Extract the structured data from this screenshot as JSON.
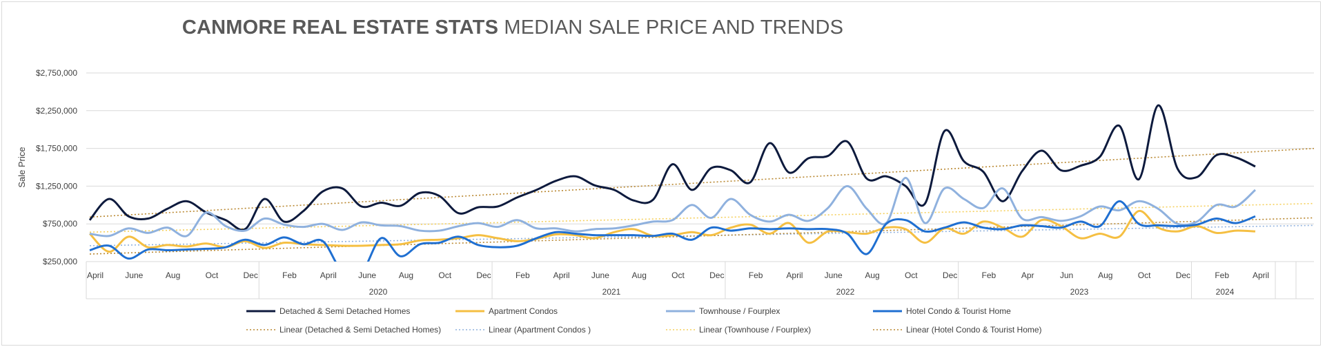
{
  "chart_data": {
    "type": "line",
    "title_bold": "CANMORE REAL ESTATE STATS",
    "title_rest": "MEDIAN SALE PRICE AND TRENDS",
    "ylabel": "Sale Price",
    "xlabel": "",
    "ylim": [
      250000,
      2750000
    ],
    "yticks": [
      "$250,000",
      "$750,000",
      "$1,250,000",
      "$1,750,000",
      "$2,250,000",
      "$2,750,000"
    ],
    "grid": true,
    "legend_position": "bottom",
    "x_tick_labels": [
      "April",
      "June",
      "Aug",
      "Oct",
      "Dec",
      "Feb",
      "April",
      "June",
      "Aug",
      "Oct",
      "Dec",
      "Feb",
      "April",
      "June",
      "Aug",
      "Oct",
      "Dec",
      "Feb",
      "April",
      "June",
      "Aug",
      "Oct",
      "Dec",
      "Feb",
      "Apr",
      "Jun",
      "Aug",
      "Oct",
      "Dec",
      "Feb",
      "April"
    ],
    "year_labels": [
      "2020",
      "2021",
      "2022",
      "2023",
      "2024"
    ],
    "months": [
      "2019-04",
      "2019-05",
      "2019-06",
      "2019-07",
      "2019-08",
      "2019-09",
      "2019-10",
      "2019-11",
      "2019-12",
      "2020-01",
      "2020-02",
      "2020-03",
      "2020-04",
      "2020-05",
      "2020-06",
      "2020-07",
      "2020-08",
      "2020-09",
      "2020-10",
      "2020-11",
      "2020-12",
      "2021-01",
      "2021-02",
      "2021-03",
      "2021-04",
      "2021-05",
      "2021-06",
      "2021-07",
      "2021-08",
      "2021-09",
      "2021-10",
      "2021-11",
      "2021-12",
      "2022-01",
      "2022-02",
      "2022-03",
      "2022-04",
      "2022-05",
      "2022-06",
      "2022-07",
      "2022-08",
      "2022-09",
      "2022-10",
      "2022-11",
      "2022-12",
      "2023-01",
      "2023-02",
      "2023-03",
      "2023-04",
      "2023-05",
      "2023-06",
      "2023-07",
      "2023-08",
      "2023-09",
      "2023-10",
      "2023-11",
      "2023-12",
      "2024-01",
      "2024-02",
      "2024-03",
      "2024-04"
    ],
    "series": [
      {
        "name": "Detached & Semi Detached Homes",
        "color": "#0d1a3d",
        "values": [
          800000,
          1080000,
          850000,
          820000,
          950000,
          1050000,
          900000,
          800000,
          680000,
          1080000,
          780000,
          920000,
          1180000,
          1220000,
          980000,
          1030000,
          990000,
          1160000,
          1120000,
          890000,
          970000,
          980000,
          1100000,
          1200000,
          1320000,
          1380000,
          1260000,
          1200000,
          1060000,
          1070000,
          1540000,
          1200000,
          1490000,
          1460000,
          1300000,
          1820000,
          1430000,
          1620000,
          1650000,
          1840000,
          1350000,
          1380000,
          1250000,
          1020000,
          1980000,
          1580000,
          1440000,
          1050000,
          1450000,
          1720000,
          1460000,
          1520000,
          1640000,
          2050000,
          1340000,
          2320000,
          1480000,
          1370000,
          1660000,
          1630000,
          1510000
        ]
      },
      {
        "name": "Apartment Condos",
        "color": "#f5bf42",
        "values": [
          620000,
          380000,
          580000,
          440000,
          470000,
          450000,
          490000,
          440000,
          520000,
          430000,
          500000,
          480000,
          470000,
          460000,
          460000,
          470000,
          480000,
          530000,
          540000,
          560000,
          600000,
          560000,
          520000,
          550000,
          610000,
          600000,
          560000,
          640000,
          680000,
          590000,
          600000,
          640000,
          600000,
          700000,
          740000,
          620000,
          760000,
          500000,
          650000,
          640000,
          620000,
          700000,
          680000,
          500000,
          690000,
          620000,
          780000,
          700000,
          580000,
          800000,
          720000,
          560000,
          620000,
          580000,
          920000,
          700000,
          650000,
          720000,
          630000,
          660000,
          650000
        ]
      },
      {
        "name": "Townhouse / Fourplex",
        "color": "#8fb1de",
        "values": [
          620000,
          590000,
          690000,
          630000,
          700000,
          590000,
          900000,
          720000,
          660000,
          820000,
          740000,
          710000,
          750000,
          670000,
          770000,
          730000,
          720000,
          660000,
          660000,
          720000,
          760000,
          710000,
          800000,
          690000,
          690000,
          650000,
          680000,
          690000,
          730000,
          780000,
          800000,
          1000000,
          830000,
          1080000,
          870000,
          780000,
          870000,
          790000,
          960000,
          1250000,
          950000,
          760000,
          1360000,
          760000,
          1220000,
          1080000,
          960000,
          1220000,
          820000,
          840000,
          790000,
          850000,
          980000,
          930000,
          1050000,
          950000,
          750000,
          780000,
          1000000,
          980000,
          1200000
        ]
      },
      {
        "name": "Hotel Condo & Tourist Home",
        "color": "#1f6fd1",
        "values": [
          400000,
          460000,
          290000,
          410000,
          400000,
          410000,
          420000,
          440000,
          540000,
          470000,
          570000,
          480000,
          520000,
          120000,
          110000,
          560000,
          320000,
          480000,
          500000,
          580000,
          470000,
          440000,
          460000,
          560000,
          640000,
          620000,
          600000,
          600000,
          600000,
          590000,
          620000,
          540000,
          700000,
          660000,
          690000,
          680000,
          690000,
          680000,
          680000,
          620000,
          350000,
          750000,
          800000,
          650000,
          700000,
          770000,
          700000,
          680000,
          730000,
          720000,
          700000,
          780000,
          720000,
          1050000,
          750000,
          730000,
          720000,
          740000,
          820000,
          760000,
          850000
        ]
      },
      {
        "name": "Linear (Detached & Semi Detached Homes)",
        "color": "#b8862e",
        "dotted": true,
        "values": [
          840000,
          1750000
        ]
      },
      {
        "name": "Linear (Apartment Condos )",
        "color": "#8fb1de",
        "dotted": true,
        "values": [
          460000,
          730000
        ]
      },
      {
        "name": "Linear (Townhouse / Fourplex)",
        "color": "#f5cf5a",
        "dotted": true,
        "values": [
          640000,
          1020000
        ]
      },
      {
        "name": "Linear (Hotel Condo & Tourist Home)",
        "color": "#b8862e",
        "dotted": true,
        "values": [
          350000,
          830000
        ]
      }
    ]
  }
}
